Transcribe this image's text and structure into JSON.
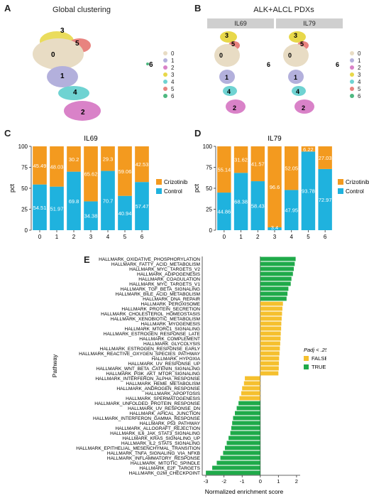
{
  "panels": {
    "A": {
      "label": "A",
      "title": "Global clustering"
    },
    "B": {
      "label": "B",
      "title": "ALK+ALCL PDXs",
      "strips": [
        "IL69",
        "IL79"
      ]
    },
    "C": {
      "label": "C"
    },
    "D": {
      "label": "D"
    },
    "E": {
      "label": "E"
    }
  },
  "umap": {
    "clusters": [
      "0",
      "1",
      "2",
      "3",
      "4",
      "5",
      "6"
    ],
    "colors": [
      "#e8dcc4",
      "#b3b0dc",
      "#d982c8",
      "#e8d84a",
      "#6fd3d2",
      "#e8837f",
      "#4eb880"
    ]
  },
  "chart_data": [
    {
      "type": "bar",
      "stacked": true,
      "title": "IL69",
      "ylabel": "pct",
      "xlabel": "",
      "ylim": [
        0,
        100
      ],
      "yticks": [
        0,
        25,
        50,
        75,
        100
      ],
      "categories": [
        "0",
        "1",
        "2",
        "3",
        "4",
        "5",
        "6"
      ],
      "series": [
        {
          "name": "Control",
          "color": "#1fb2de",
          "values": [
            54.51,
            51.97,
            69.8,
            34.38,
            70.7,
            40.94,
            57.47
          ],
          "labels": [
            "54.51",
            "51.97",
            "69.8",
            "34.38",
            "70.7",
            "40.94",
            "57.47"
          ]
        },
        {
          "name": "Crizotinib",
          "color": "#f39a1f",
          "values": [
            45.49,
            48.03,
            30.2,
            65.62,
            29.3,
            59.06,
            42.53
          ],
          "labels": [
            "45.49",
            "48.03",
            "30.2",
            "65.62",
            "29.3",
            "59.06",
            "42.53"
          ]
        }
      ],
      "legend_order": [
        "Crizotinib",
        "Control"
      ]
    },
    {
      "type": "bar",
      "stacked": true,
      "title": "IL79",
      "ylabel": "pct",
      "xlabel": "",
      "ylim": [
        0,
        100
      ],
      "yticks": [
        0,
        25,
        50,
        75,
        100
      ],
      "categories": [
        "0",
        "1",
        "2",
        "3",
        "4",
        "5",
        "6"
      ],
      "series": [
        {
          "name": "Control",
          "color": "#1fb2de",
          "values": [
            44.86,
            68.38,
            58.43,
            3.4,
            47.95,
            93.78,
            72.97
          ],
          "labels": [
            "44.86",
            "68.38",
            "58.43",
            "3.4",
            "47.95",
            "93.78",
            "72.97"
          ]
        },
        {
          "name": "Crizotinib",
          "color": "#f39a1f",
          "values": [
            55.14,
            31.62,
            41.57,
            96.6,
            52.05,
            6.22,
            27.03
          ],
          "labels": [
            "55.14",
            "31.62",
            "41.57",
            "96.6",
            "52.05",
            "6.22",
            "27.03"
          ]
        }
      ],
      "legend_order": [
        "Crizotinib",
        "Control"
      ]
    },
    {
      "type": "bar",
      "orientation": "horizontal",
      "xlabel": "Normalized enrichment score",
      "ylabel": "Pathway",
      "xlim": [
        -3.2,
        2.2
      ],
      "xticks": [
        -3,
        -2,
        -1,
        0,
        1,
        2
      ],
      "legend_title": "Padj < .25",
      "legend": [
        {
          "name": "FALSE",
          "color": "#f5c02e"
        },
        {
          "name": "TRUE",
          "color": "#1faa4a"
        }
      ],
      "categories": [
        "HALLMARK_OXIDATIVE_PHOSPHORYLATION",
        "HALLMARK_FATTY_ACID_METABOLISM",
        "HALLMARK_MYC_TARGETS_V2",
        "HALLMARK_ADIPOGENESIS",
        "HALLMARK_COAGULATION",
        "HALLMARK_MYC_TARGETS_V1",
        "HALLMARK_TGF_BETA_SIGNALING",
        "HALLMARK_BILE_ACID_METABOLISM",
        "HALLMARK_DNA_REPAIR",
        "HALLMARK_PEROXISOME",
        "HALLMARK_PROTEIN_SECRETION",
        "HALLMARK_CHOLESTEROL_HOMEOSTASIS",
        "HALLMARK_XENOBIOTIC_METABOLISM",
        "HALLMARK_MYOGENESIS",
        "HALLMARK_MTORC1_SIGNALING",
        "HALLMARK_ESTROGEN_RESPONSE_LATE",
        "HALLMARK_COMPLEMENT",
        "HALLMARK_GLYCOLYSIS",
        "HALLMARK_ESTROGEN_RESPONSE_EARLY",
        "HALLMARK_REACTIVE_OXYGEN_SPECIES_PATHWAY",
        "HALLMARK_HYPOXIA",
        "HALLMARK_UV_RESPONSE_UP",
        "HALLMARK_WNT_BETA_CATENIN_SIGNALING",
        "HALLMARK_PI3K_AKT_MTOR_SIGNALING",
        "HALLMARK_INTERFERON_ALPHA_RESPONSE",
        "HALLMARK_HEME_METABOLISM",
        "HALLMARK_ANDROGEN_RESPONSE",
        "HALLMARK_APOPTOSIS",
        "HALLMARK_SPERMATOGENESIS",
        "HALLMARK_UNFOLDED_PROTEIN_RESPONSE",
        "HALLMARK_UV_RESPONSE_DN",
        "HALLMARK_APICAL_JUNCTION",
        "HALLMARK_INTERFERON_GAMMA_RESPONSE",
        "HALLMARK_P53_PATHWAY",
        "HALLMARK_ALLOGRAFT_REJECTION",
        "HALLMARK_IL6_JAK_STAT3_SIGNALING",
        "HALLMARK_KRAS_SIGNALING_UP",
        "HALLMARK_IL2_STAT5_SIGNALING",
        "HALLMARK_EPITHELIAL_MESENCHYMAL_TRANSITION",
        "HALLMARK_TNFA_SIGNALING_VIA_NFKB",
        "HALLMARK_INFLAMMATORY_RESPONSE",
        "HALLMARK_MITOTIC_SPINDLE",
        "HALLMARK_E2F_TARGETS",
        "HALLMARK_G2M_CHECKPOINT"
      ],
      "values": [
        1.95,
        1.9,
        1.85,
        1.8,
        1.72,
        1.68,
        1.55,
        1.5,
        1.45,
        1.25,
        1.22,
        1.2,
        1.18,
        1.16,
        1.15,
        1.13,
        1.12,
        1.1,
        1.08,
        1.06,
        1.04,
        1.03,
        1.02,
        1.0,
        -0.85,
        -0.9,
        -1.0,
        -1.05,
        -1.15,
        -1.2,
        -1.3,
        -1.4,
        -1.5,
        -1.55,
        -1.6,
        -1.65,
        -1.75,
        -1.85,
        -1.95,
        -2.05,
        -2.2,
        -2.4,
        -2.65,
        -3.0
      ],
      "significant": [
        "TRUE",
        "TRUE",
        "TRUE",
        "TRUE",
        "TRUE",
        "TRUE",
        "TRUE",
        "TRUE",
        "TRUE",
        "FALSE",
        "FALSE",
        "FALSE",
        "FALSE",
        "FALSE",
        "FALSE",
        "FALSE",
        "FALSE",
        "FALSE",
        "FALSE",
        "FALSE",
        "FALSE",
        "FALSE",
        "FALSE",
        "FALSE",
        "FALSE",
        "FALSE",
        "FALSE",
        "FALSE",
        "FALSE",
        "TRUE",
        "TRUE",
        "TRUE",
        "TRUE",
        "TRUE",
        "TRUE",
        "TRUE",
        "TRUE",
        "TRUE",
        "TRUE",
        "TRUE",
        "TRUE",
        "TRUE",
        "TRUE",
        "TRUE"
      ]
    }
  ]
}
